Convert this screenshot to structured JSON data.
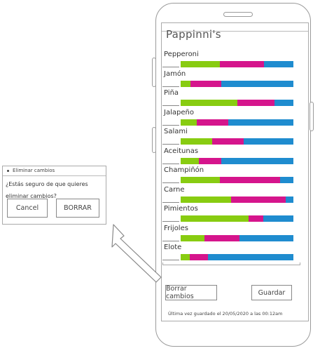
{
  "app": {
    "title": "Pappinni's",
    "items": [
      {
        "label": "Pepperoni",
        "values": [
          0.35,
          0.39,
          0.26
        ]
      },
      {
        "label": "Jamón",
        "values": [
          0.09,
          0.27,
          0.64
        ]
      },
      {
        "label": "Piña",
        "values": [
          0.5,
          0.33,
          0.17
        ]
      },
      {
        "label": "Jalapeño",
        "values": [
          0.14,
          0.28,
          0.58
        ]
      },
      {
        "label": "Salami",
        "values": [
          0.28,
          0.28,
          0.44
        ]
      },
      {
        "label": "Aceitunas",
        "values": [
          0.16,
          0.2,
          0.64
        ]
      },
      {
        "label": "Champiñón",
        "values": [
          0.35,
          0.53,
          0.12
        ]
      },
      {
        "label": "Carne",
        "values": [
          0.45,
          0.48,
          0.07
        ]
      },
      {
        "label": "Pimientos",
        "values": [
          0.6,
          0.13,
          0.27
        ]
      },
      {
        "label": "Frijoles",
        "values": [
          0.21,
          0.31,
          0.48
        ]
      },
      {
        "label": "Elote",
        "values": [
          0.08,
          0.16,
          0.76
        ]
      }
    ],
    "colors": {
      "green": "#88cc11",
      "magenta": "#d5158c",
      "blue": "#1f8ccf"
    },
    "delete_button": "Borrar cambios",
    "save_button": "Guardar",
    "last_saved": "Última vez guardado el 20/05/2020 a las 00:12am"
  },
  "dialog": {
    "title": "Eliminar cambios",
    "message": "¿Estás seguro de que quieres eliminar cambios?",
    "cancel_button": "Cancel",
    "confirm_button": "BORRAR"
  }
}
